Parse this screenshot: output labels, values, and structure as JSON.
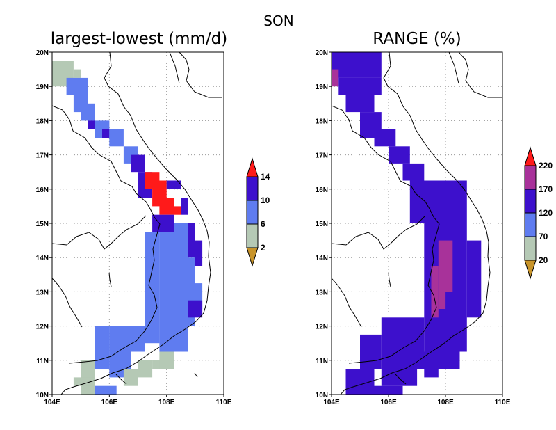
{
  "figure_title": "SON",
  "panels": [
    {
      "title": "largest-lowest (mm/d)",
      "x_ticks": [
        "104E",
        "106E",
        "108E",
        "110E"
      ],
      "y_ticks": [
        "10N",
        "11N",
        "12N",
        "13N",
        "14N",
        "15N",
        "16N",
        "17N",
        "18N",
        "19N",
        "20N"
      ],
      "colorbar": {
        "levels": [
          "2",
          "6",
          "10",
          "14"
        ],
        "colors": {
          "below": "#c8942a",
          "bins": [
            "#b5c9b5",
            "#5f7cf0",
            "#3d10cc"
          ],
          "above": "#ff1a1a"
        }
      }
    },
    {
      "title": "RANGE (%)",
      "x_ticks": [
        "104E",
        "106E",
        "108E",
        "110E"
      ],
      "y_ticks": [
        "10N",
        "11N",
        "12N",
        "13N",
        "14N",
        "15N",
        "16N",
        "17N",
        "18N",
        "19N",
        "20N"
      ],
      "colorbar": {
        "levels": [
          "20",
          "70",
          "120",
          "170",
          "220"
        ],
        "colors": {
          "below": "#c8942a",
          "bins": [
            "#b5c9b5",
            "#5f7cf0",
            "#3d10cc",
            "#a8329a"
          ],
          "above": "#ff1a1a"
        }
      }
    }
  ]
}
